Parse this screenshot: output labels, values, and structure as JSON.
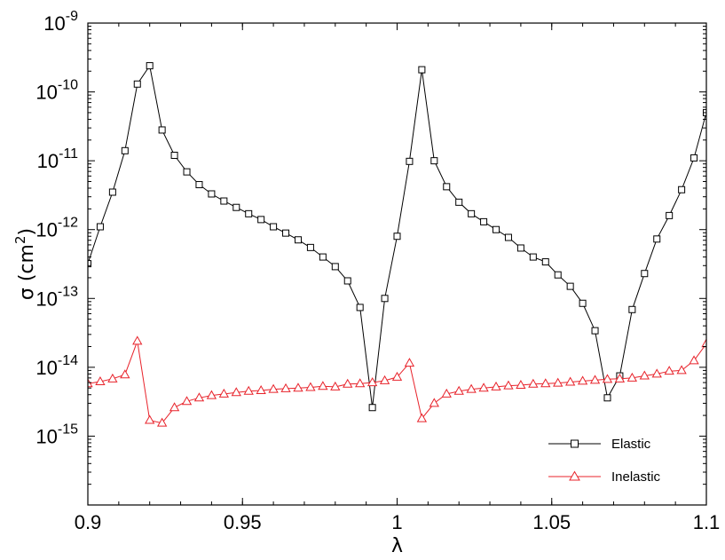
{
  "chart_data": {
    "type": "line",
    "xlabel": "λ",
    "ylabel": {
      "base": "σ (cm",
      "sup": "2",
      "close": ")"
    },
    "xlim": [
      0.9,
      1.1
    ],
    "ylim": [
      1e-16,
      1e-09
    ],
    "yscale": "log",
    "grid": false,
    "legend_position": "bottom-right",
    "x_ticks": [
      {
        "value": 0.9,
        "label": "0.9"
      },
      {
        "value": 0.95,
        "label": "0.95"
      },
      {
        "value": 1.0,
        "label": "1"
      },
      {
        "value": 1.05,
        "label": "1.05"
      },
      {
        "value": 1.1,
        "label": "1.1"
      }
    ],
    "y_ticks": [
      {
        "exp": -15,
        "base": "10",
        "sup": "-15"
      },
      {
        "exp": -14,
        "base": "10",
        "sup": "-14"
      },
      {
        "exp": -13,
        "base": "10",
        "sup": "-13"
      },
      {
        "exp": -12,
        "base": "10",
        "sup": "-12"
      },
      {
        "exp": -11,
        "base": "10",
        "sup": "-11"
      },
      {
        "exp": -10,
        "base": "10",
        "sup": "-10"
      },
      {
        "exp": -9,
        "base": "10",
        "sup": "-9"
      }
    ],
    "series": [
      {
        "name": "Elastic",
        "color": "#000000",
        "marker": "square",
        "x": [
          0.9,
          0.904,
          0.908,
          0.912,
          0.916,
          0.92,
          0.924,
          0.928,
          0.932,
          0.936,
          0.94,
          0.944,
          0.948,
          0.952,
          0.956,
          0.96,
          0.964,
          0.968,
          0.972,
          0.976,
          0.98,
          0.984,
          0.988,
          0.992,
          0.996,
          1.0,
          1.004,
          1.008,
          1.012,
          1.016,
          1.02,
          1.024,
          1.028,
          1.032,
          1.036,
          1.04,
          1.044,
          1.048,
          1.052,
          1.056,
          1.06,
          1.064,
          1.068,
          1.072,
          1.076,
          1.08,
          1.084,
          1.088,
          1.092,
          1.096,
          1.1
        ],
        "values": [
          3.2e-13,
          1.1e-12,
          3.5e-12,
          1.4e-11,
          1.3e-10,
          2.4e-10,
          2.8e-11,
          1.2e-11,
          6.9e-12,
          4.5e-12,
          3.3e-12,
          2.6e-12,
          2.1e-12,
          1.7e-12,
          1.4e-12,
          1.1e-12,
          8.9e-13,
          7.1e-13,
          5.5e-13,
          4e-13,
          2.9e-13,
          1.8e-13,
          7.4e-14,
          2.6e-15,
          1e-13,
          8e-13,
          9.8e-12,
          2.1e-10,
          1e-11,
          4.2e-12,
          2.5e-12,
          1.7e-12,
          1.3e-12,
          1e-12,
          7.7e-13,
          5.4e-13,
          4e-13,
          3.4e-13,
          2.2e-13,
          1.5e-13,
          8.5e-14,
          3.4e-14,
          3.6e-15,
          7.5e-15,
          6.9e-14,
          2.3e-13,
          7.3e-13,
          1.6e-12,
          3.8e-12,
          1.1e-11,
          5e-11
        ]
      },
      {
        "name": "Inelastic",
        "color": "#e8232b",
        "marker": "triangle",
        "x": [
          0.9,
          0.904,
          0.908,
          0.912,
          0.916,
          0.92,
          0.924,
          0.928,
          0.932,
          0.936,
          0.94,
          0.944,
          0.948,
          0.952,
          0.956,
          0.96,
          0.964,
          0.968,
          0.972,
          0.976,
          0.98,
          0.984,
          0.988,
          0.992,
          0.996,
          1.0,
          1.004,
          1.008,
          1.012,
          1.016,
          1.02,
          1.024,
          1.028,
          1.032,
          1.036,
          1.04,
          1.044,
          1.048,
          1.052,
          1.056,
          1.06,
          1.064,
          1.068,
          1.072,
          1.076,
          1.08,
          1.084,
          1.088,
          1.092,
          1.096,
          1.1
        ],
        "values": [
          5.8e-15,
          6.2e-15,
          6.8e-15,
          7.8e-15,
          2.4e-14,
          1.7e-15,
          1.55e-15,
          2.6e-15,
          3.2e-15,
          3.6e-15,
          3.9e-15,
          4.1e-15,
          4.3e-15,
          4.5e-15,
          4.6e-15,
          4.8e-15,
          4.9e-15,
          5e-15,
          5.1e-15,
          5.3e-15,
          5.2e-15,
          5.7e-15,
          5.8e-15,
          6e-15,
          6.4e-15,
          7.2e-15,
          1.15e-14,
          1.8e-15,
          3e-15,
          4.1e-15,
          4.5e-15,
          4.8e-15,
          5e-15,
          5.2e-15,
          5.4e-15,
          5.5e-15,
          5.7e-15,
          5.8e-15,
          5.9e-15,
          6.1e-15,
          6.3e-15,
          6.5e-15,
          6.7e-15,
          6.8e-15,
          7e-15,
          7.5e-15,
          8e-15,
          8.8e-15,
          9e-15,
          1.25e-14,
          2.2e-14
        ]
      }
    ]
  }
}
